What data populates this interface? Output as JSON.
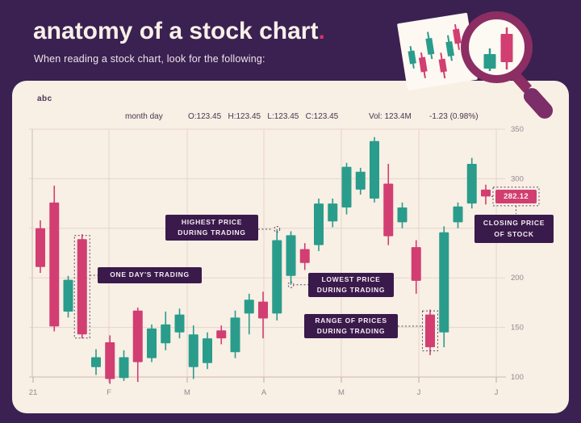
{
  "page": {
    "title": "anatomy of a stock chart",
    "title_period": ".",
    "subtitle": "When reading a stock chart, look for the following:"
  },
  "colors": {
    "background_purple": "#3b2151",
    "card_cream": "#f8efe5",
    "candle_up_teal": "#2a9c8c",
    "candle_down_pink": "#d23e72",
    "badge_purple": "#3a1a4b",
    "accent_pink": "#d5326b",
    "gridline": "#e7d5cd",
    "axis_text": "#95878f",
    "magnifier_ring": "#8c2e63"
  },
  "ticker": {
    "logo": "abc",
    "date_label": "month day",
    "ohlc": "O:123.45   H:123.45   L:123.45   C:123.45",
    "volume": "Vol: 123.4M",
    "change": "-1.23 (0.98%)"
  },
  "annotations": {
    "highest": {
      "line1": "HIGHEST PRICE",
      "line2": "DURING TRADING"
    },
    "one_day": {
      "line1": "ONE DAY'S TRADING"
    },
    "lowest": {
      "line1": "LOWEST PRICE",
      "line2": "DURING TRADING"
    },
    "range": {
      "line1": "RANGE OF PRICES",
      "line2": "DURING TRADING"
    },
    "closing": {
      "line1": "CLOSING PRICE",
      "line2": "OF STOCK"
    },
    "price_tag": "282.12"
  },
  "chart_data": {
    "type": "candlestick",
    "title": "",
    "xlabel": "",
    "ylabel": "",
    "ylim": [
      100,
      350
    ],
    "grid": true,
    "y_ticks": [
      350,
      300,
      250,
      200,
      150,
      100
    ],
    "x_ticks": [
      "21",
      "F",
      "M",
      "A",
      "M",
      "J",
      "J"
    ],
    "candle_format": "[open, high, low, close]",
    "candles": [
      [
        250,
        258,
        205,
        211
      ],
      [
        276,
        293,
        146,
        151
      ],
      [
        166,
        202,
        160,
        198
      ],
      [
        239,
        244,
        139,
        143
      ],
      [
        110,
        128,
        102,
        120
      ],
      [
        135,
        142,
        93,
        98
      ],
      [
        99,
        127,
        96,
        120
      ],
      [
        167,
        170,
        95,
        115
      ],
      [
        119,
        153,
        115,
        149
      ],
      [
        134,
        166,
        127,
        153
      ],
      [
        145,
        169,
        139,
        163
      ],
      [
        110,
        152,
        98,
        143
      ],
      [
        114,
        145,
        108,
        139
      ],
      [
        147,
        152,
        133,
        139
      ],
      [
        125,
        167,
        119,
        160
      ],
      [
        164,
        184,
        143,
        178
      ],
      [
        176,
        186,
        139,
        159
      ],
      [
        164,
        249,
        157,
        238
      ],
      [
        202,
        247,
        193,
        243
      ],
      [
        229,
        235,
        208,
        215
      ],
      [
        233,
        280,
        227,
        275
      ],
      [
        257,
        280,
        251,
        275
      ],
      [
        271,
        316,
        264,
        312
      ],
      [
        289,
        311,
        284,
        307
      ],
      [
        280,
        342,
        276,
        338
      ],
      [
        295,
        315,
        233,
        242
      ],
      [
        256,
        276,
        250,
        271
      ],
      [
        231,
        238,
        184,
        197
      ],
      [
        163,
        168,
        122,
        130
      ],
      [
        145,
        252,
        130,
        246
      ],
      [
        256,
        276,
        250,
        272
      ],
      [
        275,
        321,
        270,
        315
      ],
      [
        289,
        294,
        274,
        282.12
      ]
    ],
    "highlights": {
      "highest_price": {
        "candle_index": 17,
        "value": 249
      },
      "lowest_price": {
        "candle_index": 18,
        "value": 193
      },
      "one_days_trading": {
        "candle_index": 3
      },
      "range_of_prices": {
        "candle_index": 28
      },
      "closing_price": {
        "candle_index": 32,
        "value": 282.12
      }
    }
  }
}
